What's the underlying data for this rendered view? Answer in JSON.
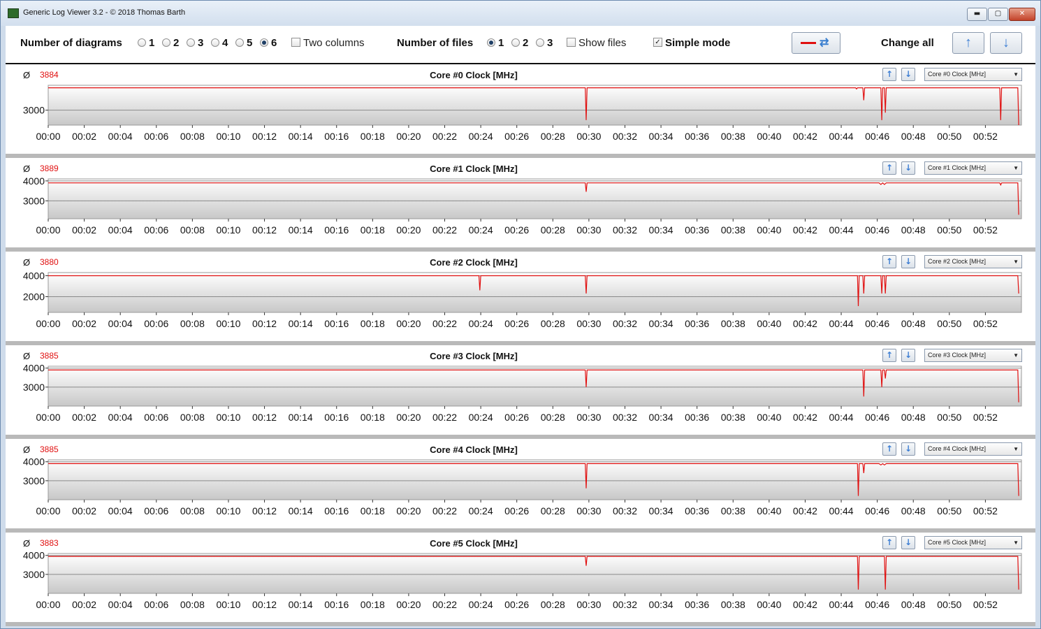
{
  "window": {
    "title": "Generic Log Viewer 3.2 - © 2018 Thomas Barth",
    "minimize_glyph": "▬",
    "maximize_glyph": "▢",
    "close_glyph": "✕"
  },
  "toolbar": {
    "diagrams_label": "Number of diagrams",
    "diagram_options": [
      "1",
      "2",
      "3",
      "4",
      "5",
      "6"
    ],
    "diagram_selected": "6",
    "two_columns_label": "Two columns",
    "two_columns_checked": false,
    "files_label": "Number of files",
    "file_options": [
      "1",
      "2",
      "3"
    ],
    "file_selected": "1",
    "show_files_label": "Show files",
    "show_files_checked": false,
    "simple_mode_label": "Simple mode",
    "simple_mode_checked": true,
    "check_mark": "✓",
    "change_all_label": "Change all",
    "icons": {
      "swap": "swap-series-icon",
      "up": "arrow-up-icon",
      "down": "arrow-down-icon"
    },
    "up_glyph": "↑",
    "down_glyph": "↓",
    "swap_glyph": "⇄"
  },
  "colors": {
    "series": "#e01010",
    "accent": "#3d7ed4"
  },
  "panels": [
    {
      "avg_symbol": "Ø",
      "avg": "3884",
      "title": "Core #0 Clock [MHz]",
      "combo": "Core #0 Clock [MHz]"
    },
    {
      "avg_symbol": "Ø",
      "avg": "3889",
      "title": "Core #1 Clock [MHz]",
      "combo": "Core #1 Clock [MHz]"
    },
    {
      "avg_symbol": "Ø",
      "avg": "3880",
      "title": "Core #2 Clock [MHz]",
      "combo": "Core #2 Clock [MHz]"
    },
    {
      "avg_symbol": "Ø",
      "avg": "3885",
      "title": "Core #3 Clock [MHz]",
      "combo": "Core #3 Clock [MHz]"
    },
    {
      "avg_symbol": "Ø",
      "avg": "3885",
      "title": "Core #4 Clock [MHz]",
      "combo": "Core #4 Clock [MHz]"
    },
    {
      "avg_symbol": "Ø",
      "avg": "3883",
      "title": "Core #5 Clock [MHz]",
      "combo": "Core #5 Clock [MHz]"
    }
  ],
  "chart_data": [
    {
      "type": "area",
      "title": "Core #0 Clock [MHz]",
      "xlabel": "",
      "ylabel": "",
      "x_ticks": [
        "00:00",
        "00:02",
        "00:04",
        "00:06",
        "00:08",
        "00:10",
        "00:12",
        "00:14",
        "00:16",
        "00:18",
        "00:20",
        "00:22",
        "00:24",
        "00:26",
        "00:28",
        "00:30",
        "00:32",
        "00:34",
        "00:36",
        "00:38",
        "00:40",
        "00:42",
        "00:44",
        "00:46",
        "00:48",
        "00:50",
        "00:52"
      ],
      "y_ticks": [
        3000
      ],
      "ylim": [
        2400,
        4000
      ],
      "xlim": [
        0,
        54
      ],
      "series": [
        {
          "color": "#e01010",
          "points": [
            [
              0,
              3900
            ],
            [
              29.8,
              3900
            ],
            [
              29.85,
              2600
            ],
            [
              29.9,
              3900
            ],
            [
              44.8,
              3900
            ],
            [
              44.85,
              3850
            ],
            [
              44.9,
              3900
            ],
            [
              45.2,
              3900
            ],
            [
              45.25,
              3400
            ],
            [
              45.3,
              3900
            ],
            [
              46.2,
              3900
            ],
            [
              46.25,
              2600
            ],
            [
              46.3,
              3900
            ],
            [
              46.4,
              3900
            ],
            [
              46.45,
              2900
            ],
            [
              46.5,
              3900
            ],
            [
              52.8,
              3900
            ],
            [
              52.85,
              2600
            ],
            [
              52.9,
              3900
            ],
            [
              53.8,
              3900
            ],
            [
              53.85,
              2400
            ]
          ]
        }
      ]
    },
    {
      "type": "area",
      "title": "Core #1 Clock [MHz]",
      "xlabel": "",
      "ylabel": "",
      "x_ticks": [
        "00:00",
        "00:02",
        "00:04",
        "00:06",
        "00:08",
        "00:10",
        "00:12",
        "00:14",
        "00:16",
        "00:18",
        "00:20",
        "00:22",
        "00:24",
        "00:26",
        "00:28",
        "00:30",
        "00:32",
        "00:34",
        "00:36",
        "00:38",
        "00:40",
        "00:42",
        "00:44",
        "00:46",
        "00:48",
        "00:50",
        "00:52"
      ],
      "y_ticks": [
        3000,
        4000
      ],
      "ylim": [
        2100,
        4100
      ],
      "xlim": [
        0,
        54
      ],
      "series": [
        {
          "color": "#e01010",
          "points": [
            [
              0,
              3900
            ],
            [
              29.8,
              3900
            ],
            [
              29.85,
              3450
            ],
            [
              29.9,
              3900
            ],
            [
              46.1,
              3900
            ],
            [
              46.2,
              3820
            ],
            [
              46.3,
              3900
            ],
            [
              46.4,
              3820
            ],
            [
              46.5,
              3900
            ],
            [
              52.8,
              3900
            ],
            [
              52.85,
              3800
            ],
            [
              52.9,
              3900
            ],
            [
              53.8,
              3900
            ],
            [
              53.85,
              2300
            ]
          ]
        }
      ]
    },
    {
      "type": "area",
      "title": "Core #2 Clock [MHz]",
      "xlabel": "",
      "ylabel": "",
      "x_ticks": [
        "00:00",
        "00:02",
        "00:04",
        "00:06",
        "00:08",
        "00:10",
        "00:12",
        "00:14",
        "00:16",
        "00:18",
        "00:20",
        "00:22",
        "00:24",
        "00:26",
        "00:28",
        "00:30",
        "00:32",
        "00:34",
        "00:36",
        "00:38",
        "00:40",
        "00:42",
        "00:44",
        "00:46",
        "00:48",
        "00:50",
        "00:52"
      ],
      "y_ticks": [
        2000,
        4000
      ],
      "ylim": [
        500,
        4300
      ],
      "xlim": [
        0,
        54
      ],
      "series": [
        {
          "color": "#e01010",
          "points": [
            [
              0,
              4000
            ],
            [
              23.9,
              4000
            ],
            [
              23.95,
              2600
            ],
            [
              24.0,
              4000
            ],
            [
              29.8,
              4000
            ],
            [
              29.85,
              2300
            ],
            [
              29.9,
              4000
            ],
            [
              44.9,
              4000
            ],
            [
              44.95,
              1100
            ],
            [
              45.0,
              4000
            ],
            [
              45.2,
              4000
            ],
            [
              45.25,
              2300
            ],
            [
              45.3,
              4000
            ],
            [
              46.2,
              4000
            ],
            [
              46.25,
              2300
            ],
            [
              46.3,
              4000
            ],
            [
              46.4,
              4000
            ],
            [
              46.45,
              2300
            ],
            [
              46.5,
              4000
            ],
            [
              53.8,
              4000
            ],
            [
              53.85,
              2300
            ]
          ]
        }
      ]
    },
    {
      "type": "area",
      "title": "Core #3 Clock [MHz]",
      "xlabel": "",
      "ylabel": "",
      "x_ticks": [
        "00:00",
        "00:02",
        "00:04",
        "00:06",
        "00:08",
        "00:10",
        "00:12",
        "00:14",
        "00:16",
        "00:18",
        "00:20",
        "00:22",
        "00:24",
        "00:26",
        "00:28",
        "00:30",
        "00:32",
        "00:34",
        "00:36",
        "00:38",
        "00:40",
        "00:42",
        "00:44",
        "00:46",
        "00:48",
        "00:50",
        "00:52"
      ],
      "y_ticks": [
        3000,
        4000
      ],
      "ylim": [
        2000,
        4100
      ],
      "xlim": [
        0,
        54
      ],
      "series": [
        {
          "color": "#e01010",
          "points": [
            [
              0,
              3900
            ],
            [
              29.8,
              3900
            ],
            [
              29.85,
              3000
            ],
            [
              29.9,
              3900
            ],
            [
              45.2,
              3900
            ],
            [
              45.25,
              2500
            ],
            [
              45.3,
              3900
            ],
            [
              46.2,
              3900
            ],
            [
              46.25,
              3000
            ],
            [
              46.3,
              3900
            ],
            [
              46.4,
              3900
            ],
            [
              46.45,
              3450
            ],
            [
              46.5,
              3900
            ],
            [
              53.8,
              3900
            ],
            [
              53.85,
              2200
            ]
          ]
        }
      ]
    },
    {
      "type": "area",
      "title": "Core #4 Clock [MHz]",
      "xlabel": "",
      "ylabel": "",
      "x_ticks": [
        "00:00",
        "00:02",
        "00:04",
        "00:06",
        "00:08",
        "00:10",
        "00:12",
        "00:14",
        "00:16",
        "00:18",
        "00:20",
        "00:22",
        "00:24",
        "00:26",
        "00:28",
        "00:30",
        "00:32",
        "00:34",
        "00:36",
        "00:38",
        "00:40",
        "00:42",
        "00:44",
        "00:46",
        "00:48",
        "00:50",
        "00:52"
      ],
      "y_ticks": [
        3000,
        4000
      ],
      "ylim": [
        2000,
        4100
      ],
      "xlim": [
        0,
        54
      ],
      "series": [
        {
          "color": "#e01010",
          "points": [
            [
              0,
              3900
            ],
            [
              29.8,
              3900
            ],
            [
              29.85,
              2600
            ],
            [
              29.9,
              3900
            ],
            [
              44.9,
              3900
            ],
            [
              44.95,
              2200
            ],
            [
              45.0,
              3900
            ],
            [
              45.2,
              3900
            ],
            [
              45.25,
              3400
            ],
            [
              45.3,
              3900
            ],
            [
              46.1,
              3900
            ],
            [
              46.2,
              3830
            ],
            [
              46.3,
              3900
            ],
            [
              46.4,
              3830
            ],
            [
              46.5,
              3900
            ],
            [
              53.8,
              3900
            ],
            [
              53.85,
              2200
            ]
          ]
        }
      ]
    },
    {
      "type": "area",
      "title": "Core #5 Clock [MHz]",
      "xlabel": "",
      "ylabel": "",
      "x_ticks": [
        "00:00",
        "00:02",
        "00:04",
        "00:06",
        "00:08",
        "00:10",
        "00:12",
        "00:14",
        "00:16",
        "00:18",
        "00:20",
        "00:22",
        "00:24",
        "00:26",
        "00:28",
        "00:30",
        "00:32",
        "00:34",
        "00:36",
        "00:38",
        "00:40",
        "00:42",
        "00:44",
        "00:46",
        "00:48",
        "00:50",
        "00:52"
      ],
      "y_ticks": [
        3000,
        4000
      ],
      "ylim": [
        2000,
        4100
      ],
      "xlim": [
        0,
        54
      ],
      "series": [
        {
          "color": "#e01010",
          "points": [
            [
              0,
              3950
            ],
            [
              29.8,
              3950
            ],
            [
              29.85,
              3450
            ],
            [
              29.9,
              3950
            ],
            [
              44.9,
              3950
            ],
            [
              44.95,
              2200
            ],
            [
              45.0,
              3950
            ],
            [
              46.4,
              3950
            ],
            [
              46.45,
              2200
            ],
            [
              46.5,
              3950
            ],
            [
              53.8,
              3950
            ],
            [
              53.85,
              2200
            ]
          ]
        }
      ]
    }
  ]
}
